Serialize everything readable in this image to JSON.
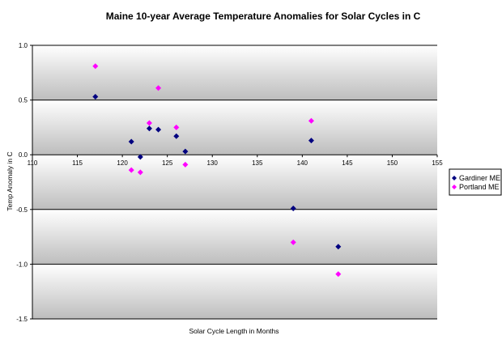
{
  "chart_data": {
    "type": "scatter",
    "title": "Maine 10-year Average Temperature Anomalies for Solar Cycles in C",
    "xlabel": "Solar Cycle Length in Months",
    "ylabel": "Temp Anomaly in C",
    "xlim": [
      110,
      155
    ],
    "ylim": [
      -1.5,
      1.0
    ],
    "x_ticks": [
      "110",
      "115",
      "120",
      "125",
      "130",
      "135",
      "140",
      "145",
      "150",
      "155"
    ],
    "y_ticks": [
      "1.0",
      "0.5",
      "0.0",
      "-0.5",
      "-1.0",
      "-1.5"
    ],
    "grid": "horizontal",
    "background": "gray gradient bands",
    "legend_position": "right",
    "series": [
      {
        "name": "Gardiner ME",
        "color": "#000080",
        "marker": "diamond",
        "points": [
          {
            "x": 117,
            "y": 0.53
          },
          {
            "x": 121,
            "y": 0.12
          },
          {
            "x": 122,
            "y": -0.02
          },
          {
            "x": 123,
            "y": 0.24
          },
          {
            "x": 124,
            "y": 0.23
          },
          {
            "x": 126,
            "y": 0.17
          },
          {
            "x": 127,
            "y": 0.03
          },
          {
            "x": 139,
            "y": -0.49
          },
          {
            "x": 141,
            "y": 0.13
          },
          {
            "x": 144,
            "y": -0.84
          }
        ]
      },
      {
        "name": "Portland ME",
        "color": "#ff00ff",
        "marker": "diamond",
        "points": [
          {
            "x": 117,
            "y": 0.81
          },
          {
            "x": 121,
            "y": -0.14
          },
          {
            "x": 122,
            "y": -0.16
          },
          {
            "x": 123,
            "y": 0.29
          },
          {
            "x": 124,
            "y": 0.61
          },
          {
            "x": 126,
            "y": 0.25
          },
          {
            "x": 127,
            "y": -0.09
          },
          {
            "x": 139,
            "y": -0.8
          },
          {
            "x": 141,
            "y": 0.31
          },
          {
            "x": 144,
            "y": -1.09
          }
        ]
      }
    ]
  }
}
